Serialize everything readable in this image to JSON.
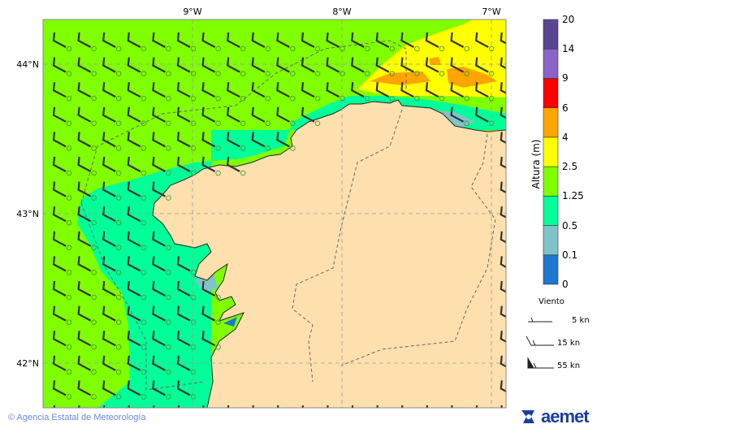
{
  "map": {
    "lon_labels": [
      "9°W",
      "8°W",
      "7°W"
    ],
    "lat_labels": [
      "44°N",
      "43°N",
      "42°N"
    ],
    "colors": {
      "ocean_base": "#7fff00",
      "coastal": "#00ff99",
      "land": "#fde0ae",
      "shallow": "#7fc4c8",
      "calm": "#1e78d0",
      "high": "#ffff00",
      "higher": "#ffa500"
    }
  },
  "colorbar": {
    "title": "Altura (m)",
    "levels": [
      "0",
      "0.1",
      "0.5",
      "1.25",
      "2.5",
      "4",
      "6",
      "9",
      "14",
      "20"
    ],
    "colors": [
      "#1e78d0",
      "#7fc4c8",
      "#00ff99",
      "#7fff00",
      "#ffff00",
      "#ffa500",
      "#ff0000",
      "#8a64c8",
      "#5a4690"
    ]
  },
  "wind_legend": {
    "title": "Viento",
    "items": [
      {
        "label": "5 kn"
      },
      {
        "label": "15 kn"
      },
      {
        "label": "55 kn"
      }
    ]
  },
  "footer": {
    "copyright": "© Agencia Estatal de Meteorología",
    "logo": "aemet"
  }
}
